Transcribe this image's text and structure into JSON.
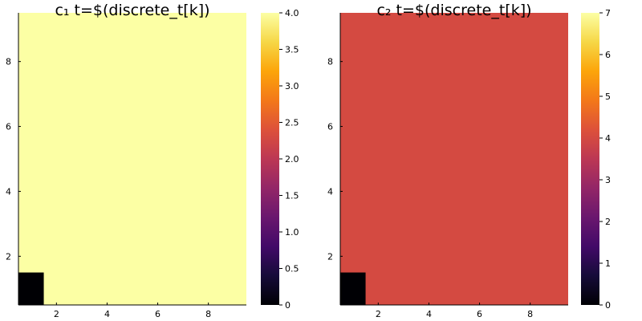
{
  "chart_data": [
    {
      "type": "heatmap",
      "title": "c₁ t=$(discrete_t[k])",
      "colormap": "inferno",
      "x_ticks": [
        2,
        4,
        6,
        8
      ],
      "y_ticks": [
        2,
        4,
        6,
        8
      ],
      "xlim": [
        0.5,
        9.5
      ],
      "ylim": [
        0.5,
        9.5
      ],
      "background_value": 4.0,
      "cells": [
        {
          "x": 1,
          "y": 1,
          "value": 0
        }
      ],
      "colorbar": {
        "min": 0,
        "max": 4,
        "ticks": [
          0,
          0.5,
          1.0,
          1.5,
          2.0,
          2.5,
          3.0,
          3.5,
          4.0
        ],
        "tick_labels": [
          "0",
          "0.5",
          "1.0",
          "1.5",
          "2.0",
          "2.5",
          "3.0",
          "3.5",
          "4.0"
        ]
      }
    },
    {
      "type": "heatmap",
      "title": "c₂ t=$(discrete_t[k])",
      "colormap": "inferno",
      "x_ticks": [
        2,
        4,
        6,
        8
      ],
      "y_ticks": [
        2,
        4,
        6,
        8
      ],
      "xlim": [
        0.5,
        9.5
      ],
      "ylim": [
        0.5,
        9.5
      ],
      "background_value": 4.0,
      "cells": [
        {
          "x": 1,
          "y": 1,
          "value": 0
        }
      ],
      "colorbar": {
        "min": 0,
        "max": 7,
        "ticks": [
          0,
          1,
          2,
          3,
          4,
          5,
          6,
          7
        ],
        "tick_labels": [
          "0",
          "1",
          "2",
          "3",
          "4",
          "5",
          "6",
          "7"
        ]
      }
    }
  ]
}
